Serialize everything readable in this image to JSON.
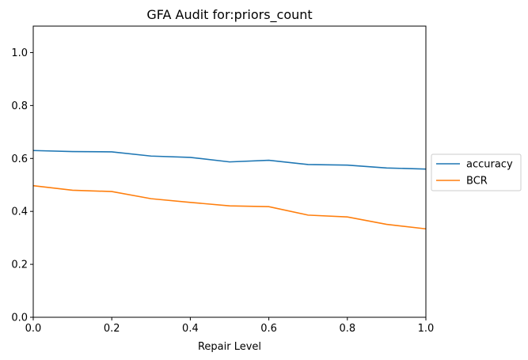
{
  "chart_data": {
    "type": "line",
    "title": "GFA Audit for:priors_count",
    "xlabel": "Repair Level",
    "ylabel": "",
    "xlim": [
      0.0,
      1.0
    ],
    "ylim": [
      0.0,
      1.1
    ],
    "x_ticks": [
      "0.0",
      "0.2",
      "0.4",
      "0.6",
      "0.8",
      "1.0"
    ],
    "y_ticks": [
      "0.0",
      "0.2",
      "0.4",
      "0.6",
      "0.8",
      "1.0"
    ],
    "x": [
      0.0,
      0.1,
      0.2,
      0.3,
      0.4,
      0.5,
      0.6,
      0.7,
      0.8,
      0.9,
      1.0
    ],
    "series": [
      {
        "name": "accuracy",
        "color": "#1f77b4",
        "values": [
          0.63,
          0.626,
          0.625,
          0.609,
          0.604,
          0.587,
          0.593,
          0.577,
          0.575,
          0.564,
          0.56
        ]
      },
      {
        "name": "BCR",
        "color": "#ff7f0e",
        "values": [
          0.497,
          0.48,
          0.475,
          0.448,
          0.434,
          0.421,
          0.418,
          0.386,
          0.379,
          0.351,
          0.334
        ]
      }
    ],
    "grid": false,
    "legend_position": "outside-right"
  }
}
